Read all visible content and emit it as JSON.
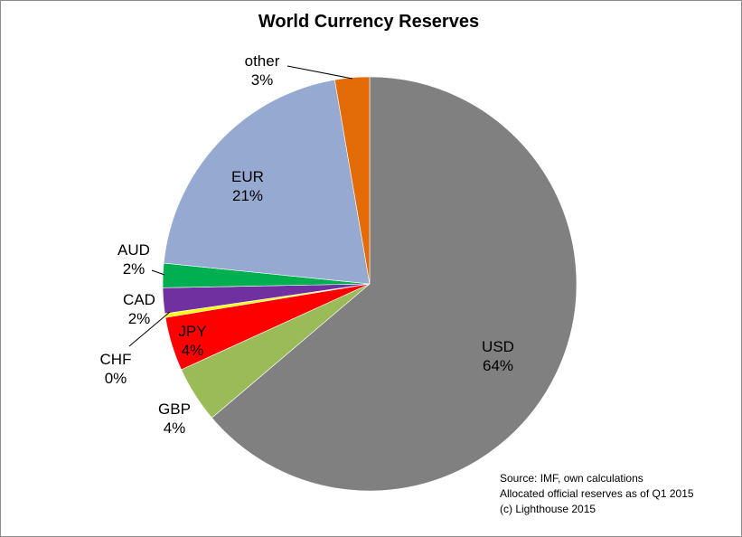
{
  "chart_data": {
    "type": "pie",
    "title": "World Currency Reserves",
    "slices": [
      {
        "label": "USD",
        "value_label": "64%",
        "value": 63.8,
        "color": "#808080"
      },
      {
        "label": "GBP",
        "value_label": "4%",
        "value": 4.4,
        "color": "#9BBB59"
      },
      {
        "label": "JPY",
        "value_label": "4%",
        "value": 4.2,
        "color": "#FF0000"
      },
      {
        "label": "CHF",
        "value_label": "0%",
        "value": 0.3,
        "color": "#FFFF00"
      },
      {
        "label": "CAD",
        "value_label": "2%",
        "value": 2.0,
        "color": "#7030A0"
      },
      {
        "label": "AUD",
        "value_label": "2%",
        "value": 1.9,
        "color": "#00B050"
      },
      {
        "label": "EUR",
        "value_label": "21%",
        "value": 20.7,
        "color": "#95A9D1"
      },
      {
        "label": "other",
        "value_label": "3%",
        "value": 2.7,
        "color": "#E36C09"
      }
    ],
    "legend": "none"
  },
  "source_notes": [
    "Source: IMF, own calculations",
    "Allocated official reserves as of Q1 2015",
    "(c) Lighthouse 2015"
  ]
}
